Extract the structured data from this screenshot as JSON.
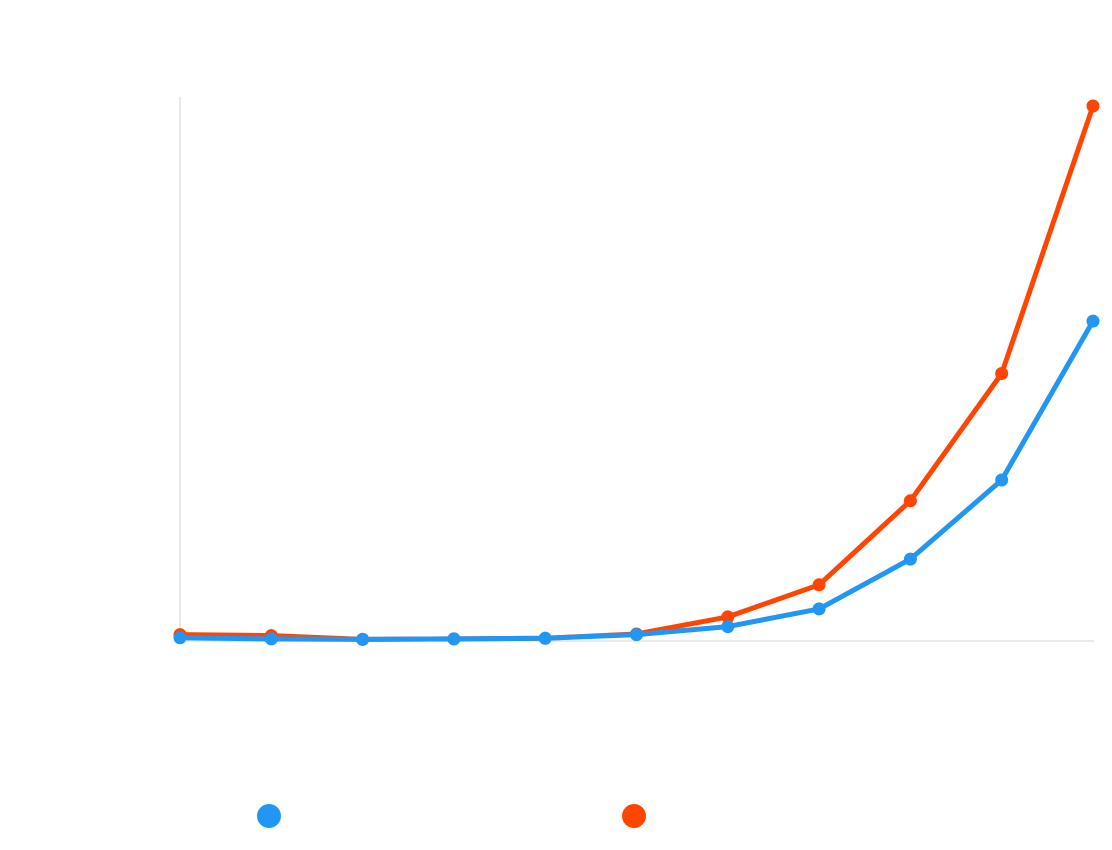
{
  "chart_data": {
    "type": "line",
    "title": "",
    "xlabel": "",
    "ylabel": "",
    "x": [
      1,
      2,
      3,
      4,
      5,
      6,
      7,
      8,
      9,
      10,
      11
    ],
    "ylim": [
      0,
      100
    ],
    "grid": false,
    "legend_position": "bottom",
    "series": [
      {
        "name": "",
        "color": "#2196F3",
        "values": [
          0.6,
          0.4,
          0.3,
          0.4,
          0.5,
          1.2,
          2.7,
          6.0,
          15.3,
          30.1,
          59.8
        ]
      },
      {
        "name": "",
        "color": "#FF4500",
        "values": [
          1.2,
          1.0,
          0.3,
          0.4,
          0.5,
          1.3,
          4.5,
          10.5,
          26.2,
          50.0,
          100.0
        ]
      }
    ]
  }
}
